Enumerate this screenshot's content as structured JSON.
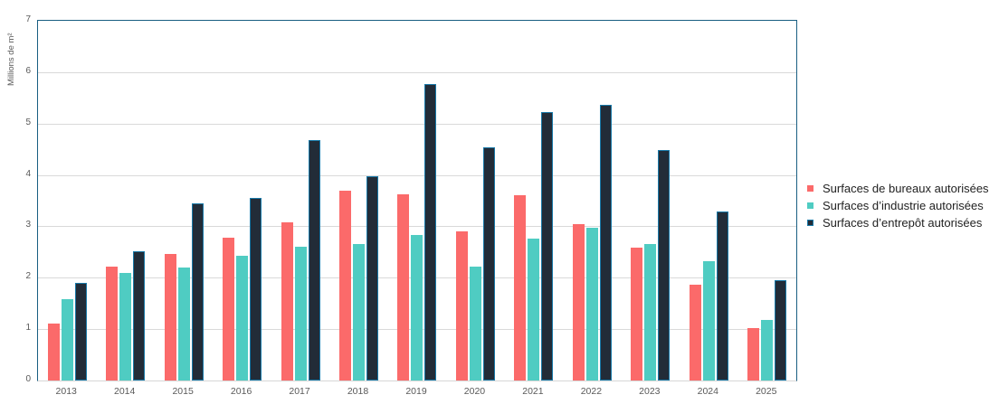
{
  "chart_data": {
    "type": "bar",
    "title": "",
    "xlabel": "",
    "ylabel": "Millions de m²",
    "ylim": [
      0,
      7
    ],
    "yticks": [
      0,
      1,
      2,
      3,
      4,
      5,
      6,
      7
    ],
    "grid": true,
    "legend_position": "right",
    "categories": [
      "2013",
      "2014",
      "2015",
      "2016",
      "2017",
      "2018",
      "2019",
      "2020",
      "2021",
      "2022",
      "2023",
      "2024",
      "2025"
    ],
    "series": [
      {
        "key": "bureaux",
        "name": "Surfaces de bureaux autorisées",
        "color": "#FB6A6A",
        "values": [
          1.1,
          2.22,
          2.47,
          2.78,
          3.07,
          3.7,
          3.62,
          2.9,
          3.61,
          3.05,
          2.58,
          1.87,
          1.02
        ]
      },
      {
        "key": "industrie",
        "name": "Surfaces d’industrie autorisées",
        "color": "#4FCCC2",
        "values": [
          1.58,
          2.1,
          2.2,
          2.43,
          2.61,
          2.66,
          2.83,
          2.21,
          2.76,
          2.97,
          2.66,
          2.32,
          1.18
        ]
      },
      {
        "key": "entrepot",
        "name": "Surfaces d’entrepôt autorisées",
        "color": "#222C38",
        "border_color": "#1879A8",
        "values": [
          1.9,
          2.52,
          3.44,
          3.56,
          4.67,
          3.97,
          5.77,
          4.53,
          5.23,
          5.37,
          4.48,
          3.29,
          1.96
        ]
      }
    ]
  },
  "style": {
    "axis_border_color": "#195E82",
    "gridline_color": "#D9D9D9",
    "tick_label_color": "#595959",
    "legend_text_color": "#1F1F1F",
    "background": "#FFFFFF"
  }
}
